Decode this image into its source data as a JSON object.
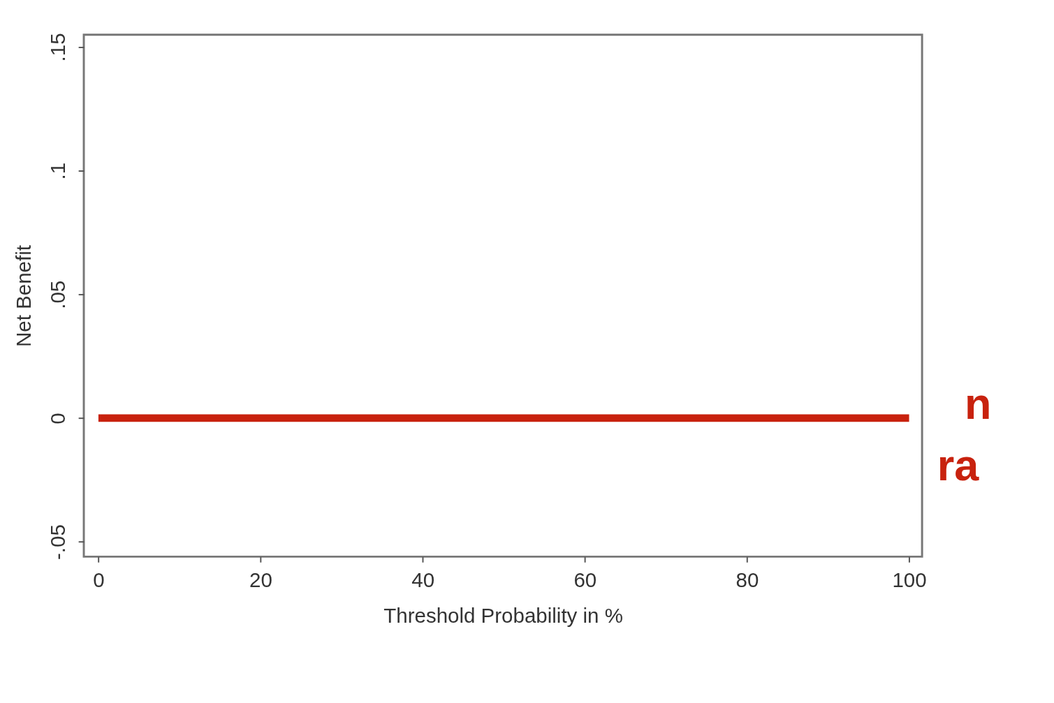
{
  "chart_data": {
    "type": "line",
    "xlabel": "Threshold Probability in %",
    "ylabel": "Net Benefit",
    "x": [
      0,
      100
    ],
    "series": [
      {
        "color": "#c8220e",
        "values": [
          0,
          0
        ]
      }
    ],
    "xlim": [
      -1.8,
      101.6
    ],
    "xticks": [
      0,
      20,
      40,
      60,
      80,
      100
    ],
    "ylim": [
      -0.056,
      0.155
    ],
    "yticks": [
      {
        "value": -0.05,
        "label": "-.05"
      },
      {
        "value": 0,
        "label": "0"
      },
      {
        "value": 0.05,
        "label": ".05"
      },
      {
        "value": 0.1,
        "label": ".1"
      },
      {
        "value": 0.15,
        "label": ".15"
      }
    ],
    "annotations": [
      "n",
      "ra"
    ],
    "grid": false,
    "marker": "none",
    "line_style": "solid"
  }
}
